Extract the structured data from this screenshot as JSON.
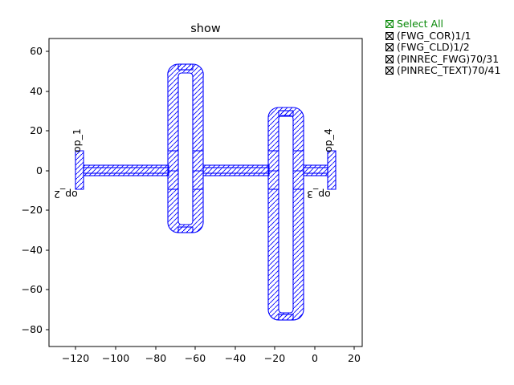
{
  "figure": {
    "title": "show",
    "x_ticks": [
      "−120",
      "−100",
      "−80",
      "−60",
      "−40",
      "−20",
      "0",
      "20"
    ],
    "y_ticks": [
      "60",
      "40",
      "20",
      "0",
      "−20",
      "−40",
      "−60",
      "−80"
    ],
    "x_range": [
      -135,
      23
    ],
    "y_range": [
      -88,
      66
    ],
    "port_labels": [
      "op_1",
      "op_2",
      "op_3",
      "op_4"
    ],
    "layout_color": "#0000ff"
  },
  "legend": {
    "select_all": "Select All",
    "items": [
      {
        "label": "(FWG_COR)1/1"
      },
      {
        "label": "(FWG_CLD)1/2"
      },
      {
        "label": "(PINREC_FWG)70/31"
      },
      {
        "label": "(PINREC_TEXT)70/41"
      }
    ]
  }
}
